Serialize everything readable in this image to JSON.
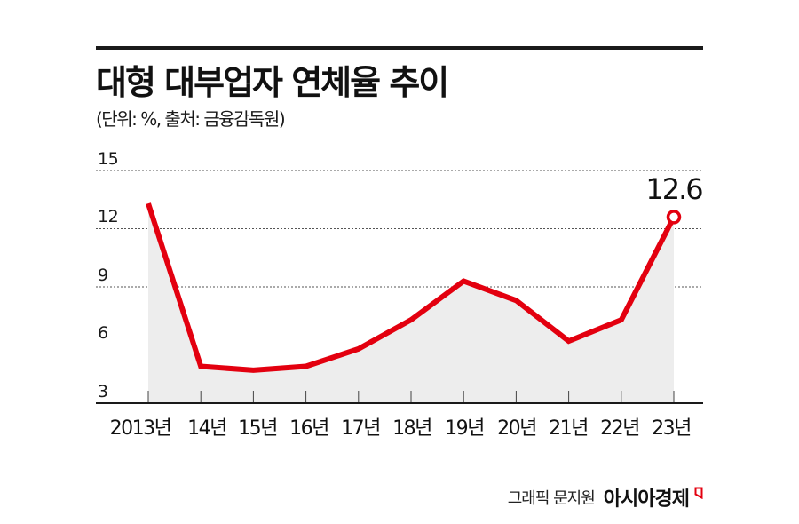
{
  "header": {
    "title": "대형 대부업자 연체율 추이",
    "subtitle": "(단위: %, 출처: 금융감독원)"
  },
  "axis": {
    "y_ticks": [
      "15",
      "12",
      "9",
      "6",
      "3"
    ],
    "x_ticks": [
      "2013년",
      "14년",
      "15년",
      "16년",
      "17년",
      "18년",
      "19년",
      "20년",
      "21년",
      "22년",
      "23년"
    ]
  },
  "annotation": {
    "last_value_label": "12.6"
  },
  "footer": {
    "credit": "그래픽 문지원",
    "brand": "아시아경제",
    "brand_mark_icon": "red-corner-mark-icon"
  },
  "colors": {
    "line": "#e3000f",
    "area_fill": "#ededed",
    "grid": "#555555",
    "axis": "#1a1a1a",
    "text": "#111111"
  },
  "chart_data": {
    "type": "line",
    "title": "대형 대부업자 연체율 추이",
    "subtitle": "(단위: %, 출처: 금융감독원)",
    "xlabel": "",
    "ylabel": "%",
    "categories": [
      "2013년",
      "14년",
      "15년",
      "16년",
      "17년",
      "18년",
      "19년",
      "20년",
      "21년",
      "22년",
      "23년"
    ],
    "series": [
      {
        "name": "연체율",
        "values": [
          13.3,
          4.9,
          4.7,
          4.9,
          5.8,
          7.3,
          9.3,
          8.3,
          6.2,
          7.3,
          12.6
        ]
      }
    ],
    "ylim": [
      3,
      15
    ],
    "yticks": [
      3,
      6,
      9,
      12,
      15
    ],
    "grid": "horizontal dotted",
    "legend": "none",
    "annotations": [
      {
        "category": "23년",
        "text": "12.6"
      }
    ],
    "area_fill_under_line": true
  }
}
